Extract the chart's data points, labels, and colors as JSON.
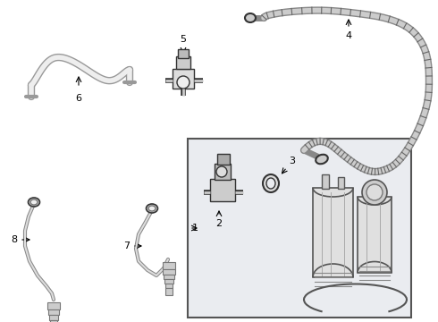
{
  "bg_color": "#ffffff",
  "line_color": "#333333",
  "light_gray": "#bbbbbb",
  "mid_gray": "#888888",
  "dark_gray": "#555555",
  "fill_light": "#e8e8e8",
  "fill_mid": "#cccccc",
  "box_fill": "#e8eaf0"
}
